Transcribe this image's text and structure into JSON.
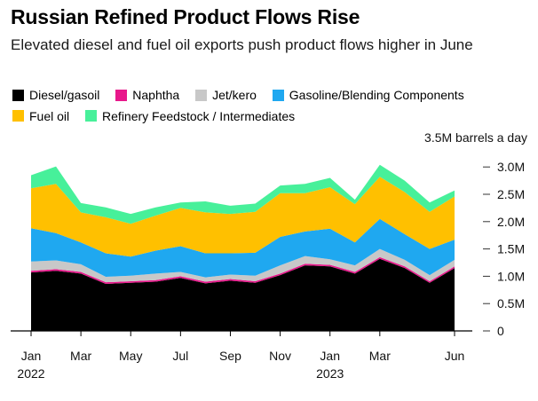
{
  "chart_data": {
    "type": "area",
    "stacked": true,
    "title": "Russian Refined Product Flows Rise",
    "subtitle": "Elevated diesel and fuel oil exports push product flows higher in June",
    "unit_label": "3.5M barrels a day",
    "x": [
      "2022-01",
      "2022-02",
      "2022-03",
      "2022-04",
      "2022-05",
      "2022-06",
      "2022-07",
      "2022-08",
      "2022-09",
      "2022-10",
      "2022-11",
      "2022-12",
      "2023-01",
      "2023-02",
      "2023-03",
      "2023-04",
      "2023-05",
      "2023-06"
    ],
    "x_ticks": [
      {
        "index": 0,
        "label": "Jan",
        "sublabel": "2022"
      },
      {
        "index": 2,
        "label": "Mar"
      },
      {
        "index": 4,
        "label": "May"
      },
      {
        "index": 6,
        "label": "Jul"
      },
      {
        "index": 8,
        "label": "Sep"
      },
      {
        "index": 10,
        "label": "Nov"
      },
      {
        "index": 12,
        "label": "Jan",
        "sublabel": "2023"
      },
      {
        "index": 14,
        "label": "Mar"
      },
      {
        "index": 17,
        "label": "Jun"
      }
    ],
    "y_ticks": [
      {
        "value": 0,
        "label": "0"
      },
      {
        "value": 0.5,
        "label": "0.5M"
      },
      {
        "value": 1.0,
        "label": "1.0M"
      },
      {
        "value": 1.5,
        "label": "1.5M"
      },
      {
        "value": 2.0,
        "label": "2.0M"
      },
      {
        "value": 2.5,
        "label": "2.5M"
      },
      {
        "value": 3.0,
        "label": "3.0M"
      }
    ],
    "ylim": [
      0,
      3.5
    ],
    "legend_position": "top",
    "series": [
      {
        "name": "Diesel/gasoil",
        "color": "#000000",
        "values": [
          1.07,
          1.1,
          1.05,
          0.86,
          0.88,
          0.9,
          0.97,
          0.87,
          0.92,
          0.88,
          1.02,
          1.2,
          1.18,
          1.05,
          1.32,
          1.15,
          0.88,
          1.15
        ]
      },
      {
        "name": "Naphtha",
        "color": "#e8188b",
        "values": [
          0.03,
          0.03,
          0.03,
          0.03,
          0.03,
          0.03,
          0.03,
          0.03,
          0.03,
          0.03,
          0.03,
          0.03,
          0.03,
          0.03,
          0.03,
          0.03,
          0.03,
          0.03
        ]
      },
      {
        "name": "Jet/kero",
        "color": "#c8c8c8",
        "values": [
          0.17,
          0.16,
          0.14,
          0.1,
          0.1,
          0.12,
          0.08,
          0.08,
          0.08,
          0.1,
          0.15,
          0.14,
          0.1,
          0.12,
          0.15,
          0.12,
          0.11,
          0.12
        ]
      },
      {
        "name": "Gasoline/Blending Components",
        "color": "#1fa8f0",
        "values": [
          0.61,
          0.5,
          0.4,
          0.43,
          0.35,
          0.42,
          0.47,
          0.44,
          0.39,
          0.42,
          0.52,
          0.45,
          0.56,
          0.42,
          0.55,
          0.47,
          0.48,
          0.37
        ]
      },
      {
        "name": "Fuel oil",
        "color": "#ffc000",
        "values": [
          0.73,
          0.9,
          0.55,
          0.66,
          0.6,
          0.64,
          0.7,
          0.75,
          0.72,
          0.75,
          0.8,
          0.7,
          0.76,
          0.7,
          0.77,
          0.77,
          0.68,
          0.79
        ]
      },
      {
        "name": "Refinery Feedstock / Intermediates",
        "color": "#47f09a",
        "values": [
          0.24,
          0.32,
          0.17,
          0.18,
          0.18,
          0.15,
          0.1,
          0.2,
          0.15,
          0.15,
          0.14,
          0.17,
          0.17,
          0.08,
          0.22,
          0.21,
          0.17,
          0.11
        ]
      }
    ]
  }
}
